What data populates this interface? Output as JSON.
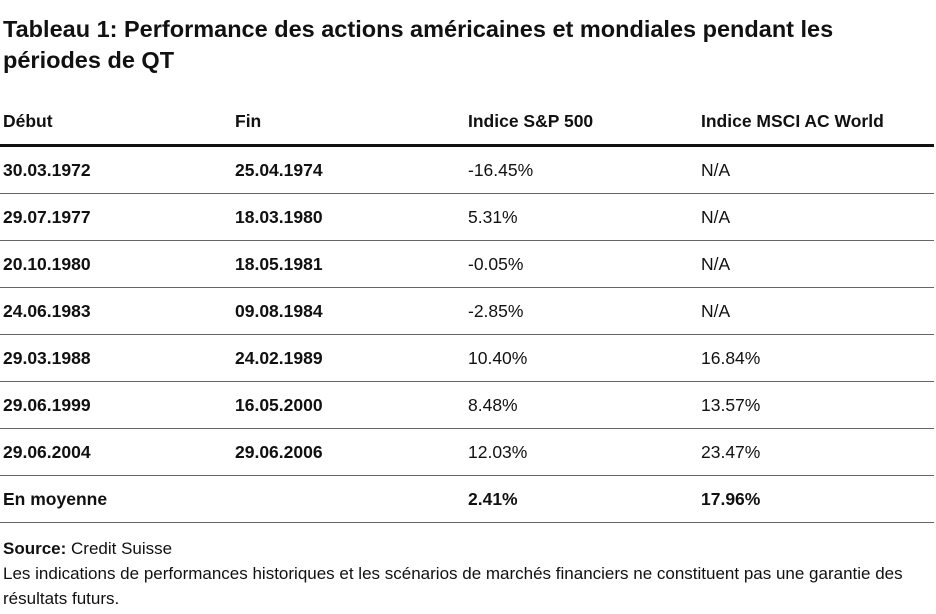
{
  "title": "Tableau 1: Performance des actions américaines et mondiales pendant les périodes de QT",
  "chart_data": {
    "type": "table",
    "columns": [
      "Début",
      "Fin",
      "Indice S&P 500",
      "Indice MSCI AC World"
    ],
    "rows": [
      [
        "30.03.1972",
        "25.04.1974",
        "-16.45%",
        "N/A"
      ],
      [
        "29.07.1977",
        "18.03.1980",
        "5.31%",
        "N/A"
      ],
      [
        "20.10.1980",
        "18.05.1981",
        "-0.05%",
        "N/A"
      ],
      [
        "24.06.1983",
        "09.08.1984",
        "-2.85%",
        "N/A"
      ],
      [
        "29.03.1988",
        "24.02.1989",
        "10.40%",
        "16.84%"
      ],
      [
        "29.06.1999",
        "16.05.2000",
        "8.48%",
        "13.57%"
      ],
      [
        "29.06.2004",
        "29.06.2006",
        "12.03%",
        "23.47%"
      ]
    ],
    "average": {
      "label": "En moyenne",
      "sp500": "2.41%",
      "msci": "17.96%"
    }
  },
  "source": {
    "label": "Source:",
    "value": " Credit Suisse",
    "disclaimer": "Les indications de performances historiques et les scénarios de marchés financiers ne constituent pas une garantie des résultats futurs."
  }
}
